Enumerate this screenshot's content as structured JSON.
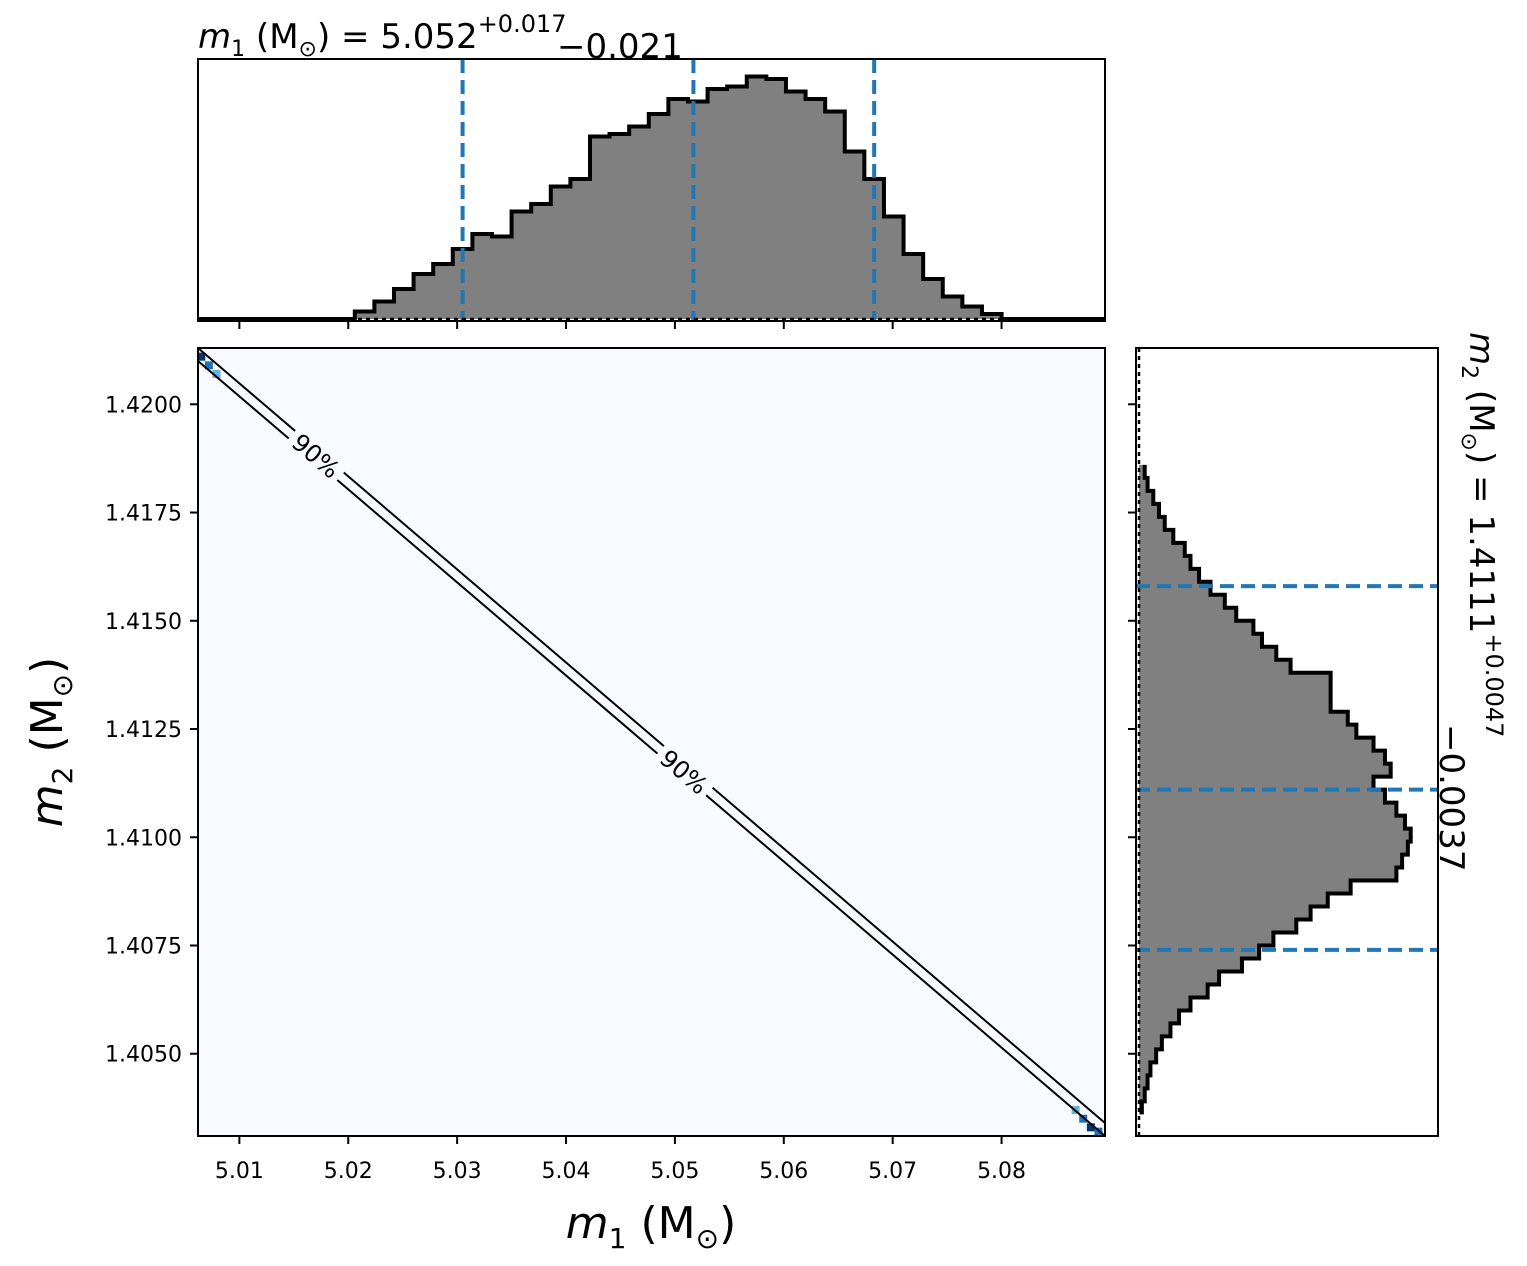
{
  "chart_data": [
    {
      "type": "histogram",
      "panel": "top-marginal",
      "title": {
        "param": "m",
        "sub": "1",
        "unit": "M",
        "unit_sub": "⊙",
        "median": "5.052",
        "plus": "+0.017",
        "minus": "−0.021"
      },
      "xlim": [
        5.0062,
        5.0895
      ],
      "ylim": [
        0,
        1.0
      ],
      "bin_edges": [
        5.0062,
        5.008,
        5.0098,
        5.0116,
        5.0134,
        5.0152,
        5.017,
        5.0188,
        5.0206,
        5.0224,
        5.0242,
        5.026,
        5.0278,
        5.0296,
        5.0314,
        5.0332,
        5.035,
        5.0368,
        5.0386,
        5.0404,
        5.0422,
        5.044,
        5.0458,
        5.0476,
        5.0494,
        5.0512,
        5.053,
        5.0548,
        5.0566,
        5.0584,
        5.0602,
        5.062,
        5.0638,
        5.0656,
        5.0674,
        5.0692,
        5.071,
        5.0728,
        5.0746,
        5.0764,
        5.0782,
        5.08,
        5.0895
      ],
      "counts": [
        0.0,
        0.0,
        0.0,
        0.0,
        0.0,
        0.0,
        0.0,
        0.0,
        0.03,
        0.07,
        0.12,
        0.18,
        0.22,
        0.28,
        0.34,
        0.33,
        0.43,
        0.46,
        0.53,
        0.56,
        0.73,
        0.74,
        0.77,
        0.82,
        0.88,
        0.87,
        0.92,
        0.93,
        0.97,
        0.96,
        0.91,
        0.88,
        0.83,
        0.67,
        0.56,
        0.41,
        0.26,
        0.16,
        0.09,
        0.05,
        0.02,
        0.0
      ],
      "quantiles": [
        5.0305,
        5.0517,
        5.0683
      ]
    },
    {
      "type": "heatmap",
      "panel": "joint",
      "xlim": [
        5.0062,
        5.0895
      ],
      "ylim": [
        1.4031,
        1.4213
      ],
      "x_ticks": [
        "5.01",
        "5.02",
        "5.03",
        "5.04",
        "5.05",
        "5.06",
        "5.07",
        "5.08"
      ],
      "x_tick_values": [
        5.01,
        5.02,
        5.03,
        5.04,
        5.05,
        5.06,
        5.07,
        5.08
      ],
      "y_ticks": [
        "1.4050",
        "1.4075",
        "1.4100",
        "1.4125",
        "1.4150",
        "1.4175",
        "1.4200"
      ],
      "y_tick_values": [
        1.405,
        1.4075,
        1.41,
        1.4125,
        1.415,
        1.4175,
        1.42
      ],
      "xlabel": {
        "param": "m",
        "sub": "1",
        "unit": "M",
        "unit_sub": "⊙"
      },
      "ylabel": {
        "param": "m",
        "sub": "2",
        "unit": "M",
        "unit_sub": "⊙"
      },
      "background_color": "#f7fbff",
      "corner_cells": [
        {
          "x": 5.0065,
          "y": 1.4211,
          "color": "#08306b"
        },
        {
          "x": 5.0072,
          "y": 1.4209,
          "color": "#2171b5"
        },
        {
          "x": 5.0079,
          "y": 1.4207,
          "color": "#6baed6"
        },
        {
          "x": 5.0868,
          "y": 1.4037,
          "color": "#6baed6"
        },
        {
          "x": 5.0875,
          "y": 1.4035,
          "color": "#2171b5"
        },
        {
          "x": 5.0882,
          "y": 1.4033,
          "color": "#08306b"
        },
        {
          "x": 5.0889,
          "y": 1.4032,
          "color": "#2171b5"
        }
      ],
      "contour": {
        "level": "90%",
        "upper_line": [
          [
            5.0062,
            1.4213
          ],
          [
            5.0895,
            1.4034
          ]
        ],
        "lower_line": [
          [
            5.0062,
            1.421
          ],
          [
            5.0895,
            1.4031
          ]
        ],
        "labels": [
          {
            "text": "90%",
            "x": 5.017,
            "y": 1.4188
          },
          {
            "text": "90%",
            "x": 5.0508,
            "y": 1.4115
          }
        ]
      }
    },
    {
      "type": "histogram",
      "panel": "right-marginal",
      "orientation": "horizontal",
      "title": {
        "param": "m",
        "sub": "2",
        "unit": "M",
        "unit_sub": "⊙",
        "median": "1.4111",
        "plus": "+0.0047",
        "minus": "−0.0037"
      },
      "ylim": [
        1.4031,
        1.4213
      ],
      "xlim": [
        0,
        1.0
      ],
      "bin_edges": [
        1.4036,
        1.4039,
        1.4042,
        1.4045,
        1.4048,
        1.4051,
        1.4054,
        1.4057,
        1.406,
        1.4063,
        1.4066,
        1.4069,
        1.4072,
        1.4075,
        1.4078,
        1.4081,
        1.4084,
        1.4087,
        1.409,
        1.4093,
        1.4096,
        1.4099,
        1.4102,
        1.4105,
        1.4108,
        1.4111,
        1.4114,
        1.4117,
        1.412,
        1.4123,
        1.4126,
        1.4129,
        1.4132,
        1.4135,
        1.4138,
        1.4141,
        1.4144,
        1.4147,
        1.415,
        1.4153,
        1.4156,
        1.4159,
        1.4162,
        1.4165,
        1.4168,
        1.4171,
        1.4174,
        1.4177,
        1.418,
        1.4183,
        1.4186
      ],
      "counts": [
        0.01,
        0.02,
        0.03,
        0.04,
        0.06,
        0.08,
        0.11,
        0.14,
        0.18,
        0.24,
        0.28,
        0.36,
        0.42,
        0.47,
        0.55,
        0.6,
        0.66,
        0.74,
        0.9,
        0.92,
        0.94,
        0.95,
        0.93,
        0.9,
        0.86,
        0.82,
        0.88,
        0.86,
        0.82,
        0.76,
        0.73,
        0.67,
        0.67,
        0.67,
        0.53,
        0.48,
        0.43,
        0.4,
        0.34,
        0.3,
        0.25,
        0.21,
        0.18,
        0.16,
        0.12,
        0.09,
        0.07,
        0.05,
        0.03,
        0.02
      ],
      "quantiles": [
        1.4074,
        1.4111,
        1.4158
      ]
    }
  ],
  "colors": {
    "histogram_fill": "#808080",
    "histogram_edge": "#000000",
    "quantile_line": "#1f77b4"
  }
}
